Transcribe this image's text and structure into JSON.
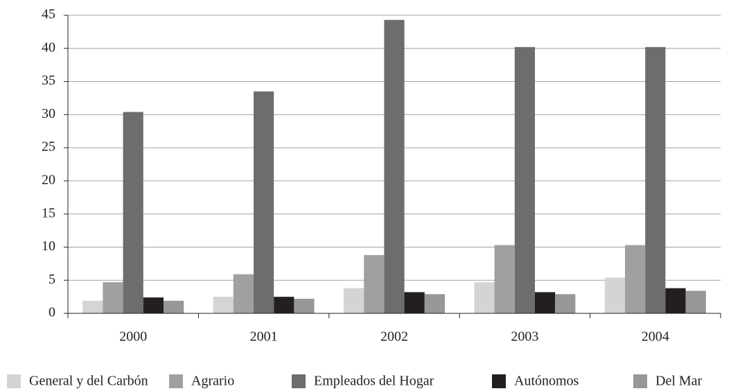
{
  "chart_data": {
    "type": "bar",
    "categories": [
      "2000",
      "2001",
      "2002",
      "2003",
      "2004"
    ],
    "series": [
      {
        "name": "General y del Carbón",
        "color": "#d4d4d4",
        "values": [
          1.9,
          2.5,
          3.8,
          4.7,
          5.4
        ]
      },
      {
        "name": "Agrario",
        "color": "#a0a0a3",
        "values": [
          4.7,
          5.9,
          8.8,
          10.3,
          10.3
        ]
      },
      {
        "name": "Empleados del Hogar",
        "color": "#6d6d70",
        "values": [
          30.4,
          33.5,
          44.3,
          40.2,
          40.2
        ]
      },
      {
        "name": "Autónomos",
        "color": "#231f20",
        "values": [
          2.4,
          2.5,
          3.2,
          3.2,
          3.8
        ]
      },
      {
        "name": "Del Mar",
        "color": "#97979a",
        "values": [
          1.9,
          2.2,
          2.9,
          2.9,
          3.4
        ]
      }
    ],
    "ylim": [
      0,
      45
    ],
    "yticks": [
      0,
      5,
      10,
      15,
      20,
      25,
      30,
      35,
      40,
      45
    ],
    "grid": true,
    "legend": "bottom"
  }
}
